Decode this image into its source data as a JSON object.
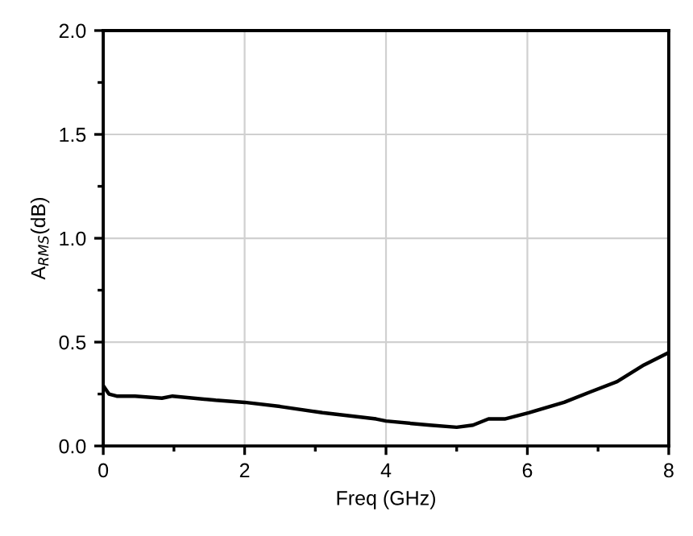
{
  "chart_data": {
    "type": "line",
    "xlabel": "Freq (GHz)",
    "ylabel": "A$_{RMS}$(dB)",
    "series": [
      {
        "color": "#000000",
        "x": [
          0,
          0.08,
          0.19,
          0.45,
          0.83,
          0.98,
          1.59,
          2.0,
          2.5,
          3.1,
          3.86,
          4.0,
          4.62,
          5.0,
          5.23,
          5.45,
          5.68,
          6.02,
          6.52,
          6.89,
          7.27,
          7.65,
          8.0
        ],
        "values": [
          0.29,
          0.25,
          0.24,
          0.24,
          0.23,
          0.24,
          0.22,
          0.21,
          0.19,
          0.16,
          0.13,
          0.12,
          0.1,
          0.09,
          0.1,
          0.13,
          0.13,
          0.16,
          0.21,
          0.26,
          0.31,
          0.39,
          0.45
        ]
      }
    ],
    "xlim": [
      0,
      8
    ],
    "xticks": [
      0,
      2,
      4,
      6,
      8
    ],
    "ylim": [
      0,
      2.0
    ],
    "yticks": [
      {
        "value": 0,
        "label": "0.0"
      },
      {
        "value": 0.5,
        "label": "0.5"
      },
      {
        "value": 1.0,
        "label": "1.0"
      },
      {
        "value": 1.5,
        "label": "1.5"
      },
      {
        "value": 2.0,
        "label": "2.0"
      }
    ],
    "grid": true,
    "legend": false,
    "marker": "none",
    "line_style": "solid"
  }
}
